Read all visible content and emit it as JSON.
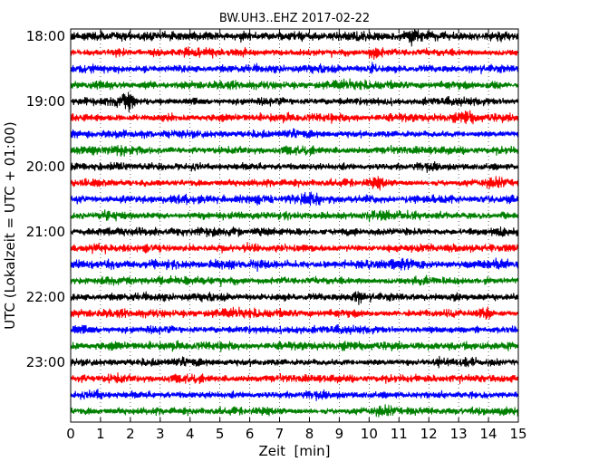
{
  "chart_data": {
    "type": "line",
    "title": "BW.UH3..EHZ 2017-02-22",
    "xlabel": "Zeit  [min]",
    "ylabel": "UTC (Lokalzeit = UTC + 01:00)",
    "xlim": [
      0,
      15
    ],
    "x_ticks": [
      "0",
      "1",
      "2",
      "3",
      "4",
      "5",
      "6",
      "7",
      "8",
      "9",
      "10",
      "11",
      "12",
      "13",
      "14",
      "15"
    ],
    "y_tick_labels": [
      "18:00",
      "19:00",
      "20:00",
      "21:00",
      "22:00",
      "23:00"
    ],
    "grid": true,
    "trace_colors": [
      "#000000",
      "#ff0000",
      "#0000ff",
      "#008000"
    ],
    "trace_count": 24,
    "events": [
      {
        "trace": 0,
        "x": 11.5,
        "amp": 2.2
      },
      {
        "trace": 1,
        "x": 10.2,
        "amp": 2.0
      },
      {
        "trace": 2,
        "x": 10.1,
        "amp": 1.6
      },
      {
        "trace": 3,
        "x": 1.0,
        "amp": 1.6
      },
      {
        "trace": 3,
        "x": 14.2,
        "amp": 1.6
      },
      {
        "trace": 4,
        "x": 1.9,
        "amp": 2.6
      },
      {
        "trace": 5,
        "x": 13.3,
        "amp": 1.8
      },
      {
        "trace": 6,
        "x": 12.3,
        "amp": 1.2
      },
      {
        "trace": 7,
        "x": 1.6,
        "amp": 1.4
      },
      {
        "trace": 9,
        "x": 10.3,
        "amp": 1.6
      },
      {
        "trace": 10,
        "x": 8.1,
        "amp": 2.0
      },
      {
        "trace": 11,
        "x": 1.2,
        "amp": 1.4
      },
      {
        "trace": 13,
        "x": 4.0,
        "amp": 1.3
      },
      {
        "trace": 14,
        "x": 11.2,
        "amp": 1.4
      },
      {
        "trace": 16,
        "x": 9.6,
        "amp": 1.8
      },
      {
        "trace": 17,
        "x": 13.9,
        "amp": 1.8
      },
      {
        "trace": 18,
        "x": 7.6,
        "amp": 1.4
      },
      {
        "trace": 19,
        "x": 1.6,
        "amp": 1.2
      },
      {
        "trace": 21,
        "x": 1.5,
        "amp": 1.4
      },
      {
        "trace": 22,
        "x": 0.9,
        "amp": 1.5
      },
      {
        "trace": 22,
        "x": 13.2,
        "amp": 1.2
      }
    ]
  }
}
